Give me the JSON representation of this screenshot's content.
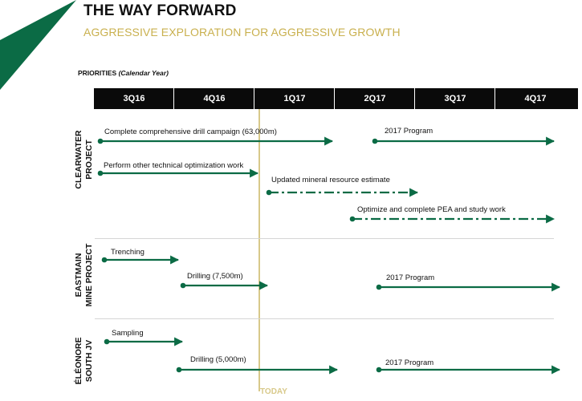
{
  "slide": {
    "title": "THE WAY FORWARD",
    "subtitle": "AGGRESSIVE EXPLORATION FOR AGGRESSIVE GROWTH",
    "priorities_label": "PRIORITIES",
    "priorities_note": "(Calendar Year)",
    "today_label": "TODAY",
    "accent_color": "#0b6b45",
    "gold_color": "#c9b04e"
  },
  "quarters": [
    "3Q16",
    "4Q16",
    "1Q17",
    "2Q17",
    "3Q17",
    "4Q17"
  ],
  "projects": [
    {
      "label_line1": "CLEARWATER",
      "label_line2": "PROJECT"
    },
    {
      "label_line1": "EASTMAIN",
      "label_line2": "MINE PROJECT"
    },
    {
      "label_line1": "ÉLÉONORE",
      "label_line2": "SOUTH JV"
    }
  ],
  "tasks": [
    {
      "label": "Complete comprehensive drill campaign (63,000m)",
      "style": "solid"
    },
    {
      "label": "2017 Program",
      "style": "solid"
    },
    {
      "label": "Perform other technical optimization work",
      "style": "solid"
    },
    {
      "label": "Updated mineral resource estimate",
      "style": "dashed"
    },
    {
      "label": "Optimize and complete PEA and study work",
      "style": "dashed"
    },
    {
      "label": "Trenching",
      "style": "solid"
    },
    {
      "label": "Drilling (7,500m)",
      "style": "solid"
    },
    {
      "label": "2017 Program",
      "style": "solid"
    },
    {
      "label": "Sampling",
      "style": "solid"
    },
    {
      "label": "Drilling (5,000m)",
      "style": "solid"
    },
    {
      "label": "2017 Program",
      "style": "solid"
    }
  ]
}
